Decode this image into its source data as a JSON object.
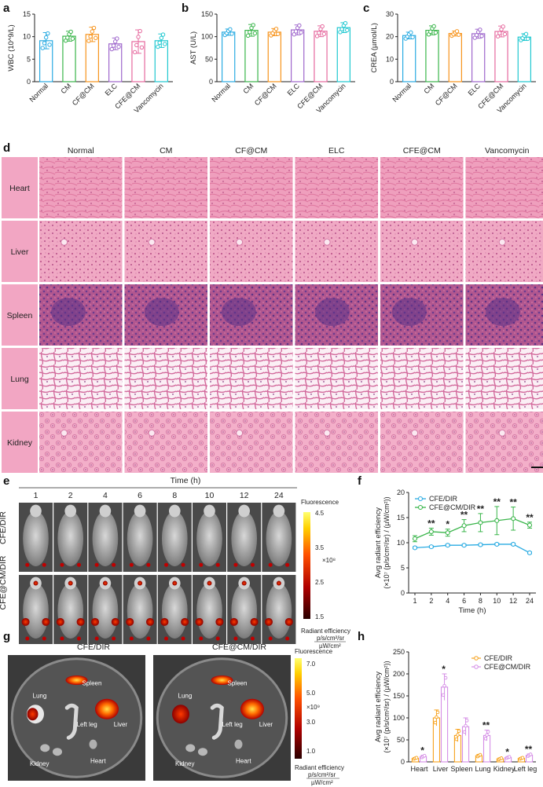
{
  "panels": {
    "a": "a",
    "b": "b",
    "c": "c",
    "d": "d",
    "e": "e",
    "f": "f",
    "g": "g",
    "h": "h"
  },
  "colors": {
    "Normal": "#29abe2",
    "CM": "#39b54a",
    "CF@CM": "#f7941d",
    "ELC": "#9e66cc",
    "CFE@CM": "#e6699e",
    "Vancomycin": "#1ec8d0",
    "cfe_dir": "#29abe2",
    "cfe_cm_dir": "#39b54a",
    "h_cfe": "#f7a21d",
    "h_cfe_cm": "#d58ee6"
  },
  "chart_data": [
    {
      "id": "a",
      "type": "bar",
      "ylabel": "WBC (10^9/L)",
      "ylim": [
        0,
        15
      ],
      "yticks": [
        0,
        5,
        10,
        15
      ],
      "categories": [
        "Normal",
        "CM",
        "CF@CM",
        "ELC",
        "CFE@CM",
        "Vancomycin"
      ],
      "values": [
        9.1,
        10.1,
        10.5,
        8.4,
        8.9,
        9.1
      ],
      "err": [
        1.8,
        1.1,
        1.6,
        1.3,
        2.6,
        1.5
      ]
    },
    {
      "id": "b",
      "type": "bar",
      "ylabel": "AST (U/L)",
      "ylim": [
        0,
        150
      ],
      "yticks": [
        0,
        50,
        100,
        150
      ],
      "categories": [
        "Normal",
        "CM",
        "CF@CM",
        "ELC",
        "CFE@CM",
        "Vancomycin"
      ],
      "values": [
        110,
        114,
        110,
        115,
        112,
        120
      ],
      "err": [
        7,
        13,
        8,
        11,
        12,
        11
      ]
    },
    {
      "id": "c",
      "type": "bar",
      "ylabel": "CREA (µmol/L)",
      "ylim": [
        0,
        30
      ],
      "yticks": [
        0,
        10,
        20,
        30
      ],
      "categories": [
        "Normal",
        "CM",
        "CF@CM",
        "ELC",
        "CFE@CM",
        "Vancomycin"
      ],
      "values": [
        20.5,
        22.8,
        21.4,
        21.3,
        22.3,
        19.8
      ],
      "err": [
        1.5,
        2.0,
        1.1,
        2.0,
        2.4,
        1.5
      ]
    },
    {
      "id": "f",
      "type": "line",
      "xlabel": "Time (h)",
      "ylabel": "Avg radiant efficiency",
      "ylabel2": "(×10⁷ (p/s/cm²/sr) / (µW/cm²))",
      "ylim": [
        0,
        20
      ],
      "yticks": [
        0,
        5,
        10,
        15,
        20
      ],
      "categories": [
        "1",
        "2",
        "4",
        "6",
        "8",
        "10",
        "12",
        "24"
      ],
      "series": [
        {
          "name": "CFE/DIR",
          "values": [
            9.0,
            9.2,
            9.5,
            9.5,
            9.6,
            9.7,
            9.7,
            8.0
          ],
          "err": [
            0.2,
            0.2,
            0.2,
            0.2,
            0.2,
            0.2,
            0.2,
            0.2
          ]
        },
        {
          "name": "CFE@CM/DIR",
          "values": [
            10.8,
            12.2,
            12.0,
            13.4,
            14.0,
            14.4,
            14.8,
            13.5
          ],
          "err": [
            0.6,
            0.7,
            0.7,
            1.2,
            1.8,
            2.8,
            2.3,
            0.6
          ]
        }
      ],
      "annotations": [
        "",
        "**",
        "*",
        "**",
        "**",
        "**",
        "**",
        "**"
      ]
    },
    {
      "id": "h",
      "type": "bar",
      "ylabel": "Avg radiant efficiency",
      "ylabel2": "(×10⁷ (p/s/cm²/sr) / (µW/cm²))",
      "ylim": [
        0,
        250
      ],
      "yticks": [
        0,
        50,
        100,
        150,
        200,
        250
      ],
      "categories": [
        "Heart",
        "Liver",
        "Spleen",
        "Lung",
        "Kidney",
        "Left leg"
      ],
      "series": [
        {
          "name": "CFE/DIR",
          "values": [
            8,
            100,
            60,
            14,
            7,
            8
          ],
          "err": [
            2,
            18,
            14,
            3,
            2,
            2
          ]
        },
        {
          "name": "CFE@CM/DIR",
          "values": [
            12,
            170,
            80,
            60,
            10,
            15
          ],
          "err": [
            3,
            30,
            20,
            12,
            2,
            3
          ]
        }
      ],
      "annotations": [
        "*",
        "*",
        "",
        "**",
        "*",
        "**"
      ]
    }
  ],
  "histology": {
    "columns": [
      "Normal",
      "CM",
      "CF@CM",
      "ELC",
      "CFE@CM",
      "Vancomycin"
    ],
    "rows": [
      "Heart",
      "Liver",
      "Spleen",
      "Lung",
      "Kidney"
    ]
  },
  "imaging_e": {
    "time_title": "Time (h)",
    "times": [
      "1",
      "2",
      "4",
      "6",
      "8",
      "10",
      "12",
      "24"
    ],
    "rows": [
      "CFE/DIR",
      "CFE@CM/DIR"
    ],
    "scale_title": "Fluorescence",
    "scale_ticks": [
      "4.5",
      "3.5",
      "2.5",
      "1.5"
    ],
    "scale_exp": "×10⁸",
    "scale_label": "Radiant efficiency",
    "scale_unit_num": "p/s/cm²/sr",
    "scale_unit_den": "µW/cm²"
  },
  "imaging_g": {
    "dishes": [
      "CFE/DIR",
      "CFE@CM/DIR"
    ],
    "organs": [
      "Spleen",
      "Lung",
      "Liver",
      "Left leg",
      "Kidney",
      "Heart"
    ],
    "scale_title": "Fluorescence",
    "scale_ticks": [
      "7.0",
      "5.0",
      "3.0",
      "1.0"
    ],
    "scale_exp": "×10⁹",
    "scale_label": "Radiant efficiency",
    "scale_unit_num": "p/s/cm²/sr",
    "scale_unit_den": "µW/cm²"
  }
}
